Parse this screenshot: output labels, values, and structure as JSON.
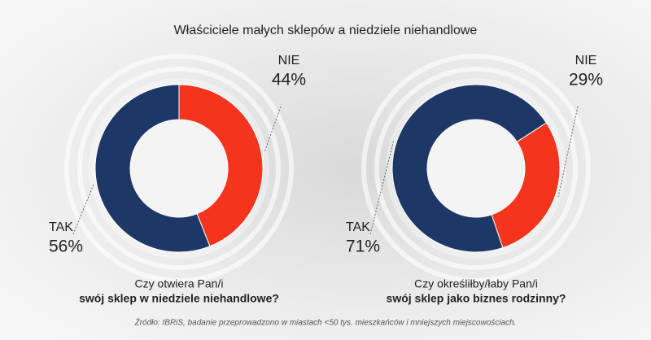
{
  "title": "Właściciele małych sklepów a niedziele niehandlowe",
  "source": "Źródło: IBRiS, badanie przeprowadzono w miastach <50 tys. mieszkańców i mniejszych miejscowościach.",
  "chart_data": [
    {
      "type": "pie",
      "title_lines": [
        "Czy otwiera Pan/i",
        "swój sklep w niedziele niehandlowe?"
      ],
      "categories": [
        "NIE",
        "TAK"
      ],
      "values": [
        44,
        56
      ],
      "value_labels": [
        "44%",
        "56%"
      ],
      "colors": [
        "#f4341c",
        "#1d3767"
      ],
      "startangle": 0
    },
    {
      "type": "pie",
      "title_lines": [
        "Czy określiłby/łaby Pan/i",
        "swój sklep jako biznes rodzinny?"
      ],
      "categories": [
        "NIE",
        "TAK"
      ],
      "values": [
        29,
        71
      ],
      "value_labels": [
        "29%",
        "71%"
      ],
      "colors": [
        "#f4341c",
        "#1d3767"
      ],
      "startangle": 57
    }
  ]
}
